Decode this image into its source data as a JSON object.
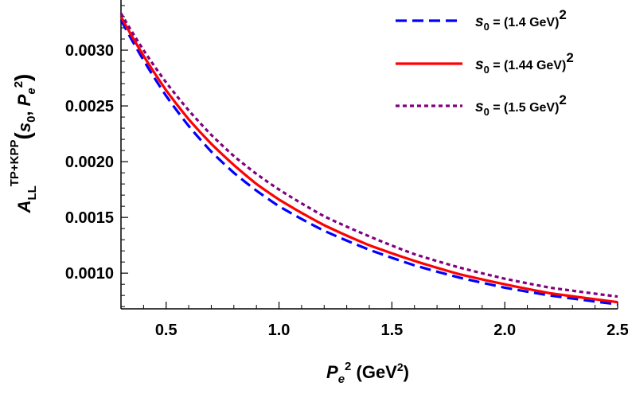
{
  "chart_data": {
    "type": "line",
    "xlabel": {
      "main": "P",
      "sub": "e",
      "sup": "2",
      "unit": " (GeV",
      "unit_sup": "2",
      "unit_close": ")"
    },
    "ylabel": {
      "main": "A",
      "sub": "LL",
      "sup": "TP+KPP",
      "arg_open": "(",
      "arg1": "s",
      "arg1_sub": "0",
      "arg_sep": ",  ",
      "arg2": "P",
      "arg2_sub": "e",
      "arg2_sup": "2",
      "arg_close": ")"
    },
    "xlim": [
      0.3,
      2.5
    ],
    "ylim": [
      0.00068,
      0.00345
    ],
    "x_ticks": [
      {
        "value": 0.5,
        "label": "0.5"
      },
      {
        "value": 1.0,
        "label": "1.0"
      },
      {
        "value": 1.5,
        "label": "1.5"
      },
      {
        "value": 2.0,
        "label": "2.0"
      },
      {
        "value": 2.5,
        "label": "2.5"
      }
    ],
    "y_ticks": [
      {
        "value": 0.001,
        "label": "0.0010"
      },
      {
        "value": 0.0015,
        "label": "0.0015"
      },
      {
        "value": 0.002,
        "label": "0.0020"
      },
      {
        "value": 0.0025,
        "label": "0.0025"
      },
      {
        "value": 0.003,
        "label": "0.0030"
      }
    ],
    "x": [
      0.3,
      0.4,
      0.5,
      0.6,
      0.7,
      0.8,
      0.9,
      1.0,
      1.2,
      1.4,
      1.6,
      1.8,
      2.0,
      2.2,
      2.5
    ],
    "series": [
      {
        "name_main": "s",
        "name_sub": "0",
        "name_eq": " = (1.4 GeV)",
        "name_sup": "2",
        "color": "#0000ff",
        "dash": "dashed",
        "values": [
          0.00327,
          0.00291,
          0.00259,
          0.00232,
          0.00209,
          0.0019,
          0.00174,
          0.0016,
          0.00138,
          0.00121,
          0.00107,
          0.00096,
          0.00087,
          0.0008,
          0.00072
        ]
      },
      {
        "name_main": "s",
        "name_sub": "0",
        "name_eq": " = (1.44 GeV)",
        "name_sup": "2",
        "color": "#ff0000",
        "dash": "solid",
        "values": [
          0.0033,
          0.00295,
          0.00264,
          0.00238,
          0.00216,
          0.00197,
          0.0018,
          0.00166,
          0.00143,
          0.00125,
          0.00111,
          0.00099,
          0.0009,
          0.00082,
          0.00074
        ]
      },
      {
        "name_main": "s",
        "name_sub": "0",
        "name_eq": " = (1.5 GeV)",
        "name_sup": "2",
        "color": "#800080",
        "dash": "dotted",
        "values": [
          0.00333,
          0.003,
          0.00271,
          0.00246,
          0.00224,
          0.00205,
          0.00189,
          0.00175,
          0.00151,
          0.00133,
          0.00117,
          0.00105,
          0.00095,
          0.00087,
          0.00079
        ]
      }
    ],
    "legend_position": "top-right"
  }
}
